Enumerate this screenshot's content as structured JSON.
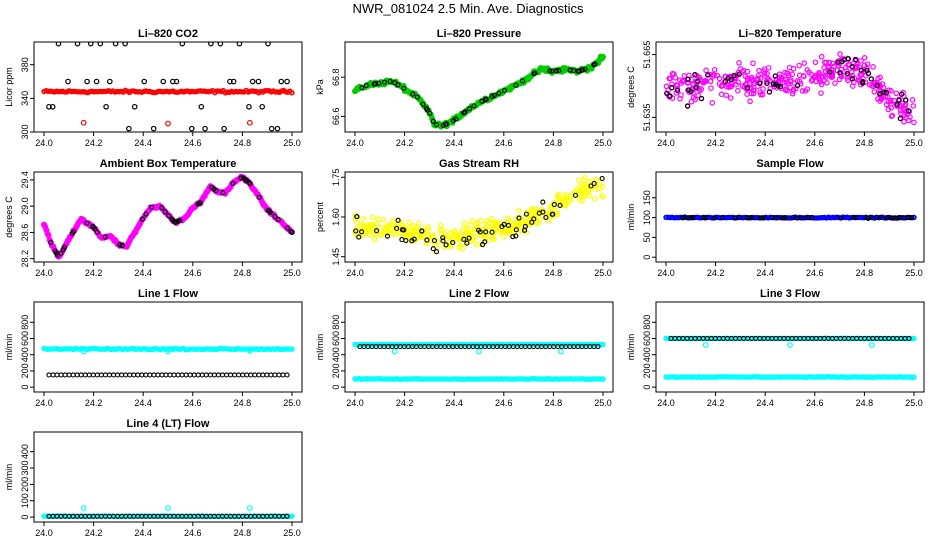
{
  "title": "NWR_081024  2.5 Min. Ave. Diagnostics",
  "chart_data": [
    {
      "type": "scatter",
      "title": "Li–820 CO2",
      "ylabel": "Licor ppm",
      "xlim": [
        24.0,
        25.0
      ],
      "ylim": [
        300,
        407
      ],
      "x_ticks": [
        "24.0",
        "24.2",
        "24.4",
        "24.6",
        "24.8",
        "25.0"
      ],
      "y_ticks": [
        {
          "v": 300,
          "t": "300"
        },
        {
          "v": 340,
          "t": "340"
        },
        {
          "v": 380,
          "t": "380"
        }
      ],
      "series": [
        {
          "color": "#ff0000",
          "style": "band",
          "x": [
            24.0,
            25.0
          ],
          "y": [
            348,
            348
          ],
          "noise": 1.5,
          "spikes": [
            [
              24.16,
              311
            ],
            [
              24.5,
              310
            ],
            [
              24.83,
              311
            ]
          ]
        },
        {
          "color": "#000000",
          "style": "scatter",
          "levels": [
            405,
            360,
            330,
            304
          ]
        }
      ]
    },
    {
      "type": "line",
      "title": "Li–820 Pressure",
      "ylabel": "kPa",
      "xlim": [
        24.0,
        25.0
      ],
      "ylim": [
        66.52,
        66.98
      ],
      "x_ticks": [
        "24.0",
        "24.2",
        "24.4",
        "24.6",
        "24.8",
        "25.0"
      ],
      "y_ticks": [
        {
          "v": 66.6,
          "t": "66.6"
        },
        {
          "v": 66.8,
          "t": "66.8"
        }
      ],
      "series": [
        {
          "color": "#00cc00",
          "style": "thick",
          "x": [
            24.0,
            24.05,
            24.1,
            24.15,
            24.2,
            24.25,
            24.3,
            24.32,
            24.35,
            24.4,
            24.45,
            24.5,
            24.55,
            24.6,
            24.65,
            24.7,
            24.75,
            24.8,
            24.85,
            24.9,
            24.95,
            25.0
          ],
          "y": [
            66.73,
            66.76,
            66.77,
            66.78,
            66.74,
            66.7,
            66.62,
            66.56,
            66.55,
            66.58,
            66.63,
            66.67,
            66.7,
            66.73,
            66.76,
            66.8,
            66.84,
            66.83,
            66.84,
            66.83,
            66.85,
            66.9
          ],
          "noise": 0.012
        },
        {
          "color": "#000000",
          "style": "overlay"
        }
      ]
    },
    {
      "type": "scatter",
      "title": "Li–820 Temperature",
      "ylabel": "degrees C",
      "xlim": [
        24.0,
        25.0
      ],
      "ylim": [
        51.628,
        51.671
      ],
      "x_ticks": [
        "24.0",
        "24.2",
        "24.4",
        "24.6",
        "24.8",
        "25.0"
      ],
      "y_ticks": [
        {
          "v": 51.635,
          "t": "51.635"
        },
        {
          "v": 51.665,
          "t": "51.665"
        }
      ],
      "series": [
        {
          "color": "#ff00ff",
          "style": "cloud",
          "x": [
            24.0,
            24.2,
            24.4,
            24.6,
            24.8,
            24.9,
            25.0
          ],
          "y": [
            51.648,
            51.652,
            51.652,
            51.655,
            51.657,
            51.642,
            51.638
          ],
          "noise": 0.008
        },
        {
          "color": "#000000",
          "style": "overlay"
        }
      ]
    },
    {
      "type": "line",
      "title": "Ambient Box Temperature",
      "ylabel": "degrees C",
      "xlim": [
        24.0,
        25.0
      ],
      "ylim": [
        28.15,
        29.52
      ],
      "x_ticks": [
        "24.0",
        "24.2",
        "24.4",
        "24.6",
        "24.8",
        "25.0"
      ],
      "y_ticks": [
        {
          "v": 28.2,
          "t": "28.2"
        },
        {
          "v": 28.6,
          "t": "28.6"
        },
        {
          "v": 29.0,
          "t": "29.0"
        },
        {
          "v": 29.4,
          "t": "29.4"
        }
      ],
      "series": [
        {
          "color": "#ff00ff",
          "style": "thick",
          "x": [
            24.0,
            24.03,
            24.06,
            24.1,
            24.15,
            24.2,
            24.23,
            24.27,
            24.3,
            24.33,
            24.37,
            24.4,
            24.43,
            24.47,
            24.5,
            24.53,
            24.57,
            24.6,
            24.63,
            24.67,
            24.7,
            24.73,
            24.77,
            24.8,
            24.83,
            24.87,
            24.9,
            24.95,
            25.0
          ],
          "y": [
            28.72,
            28.42,
            28.22,
            28.5,
            28.8,
            28.68,
            28.52,
            28.55,
            28.42,
            28.38,
            28.62,
            28.82,
            28.98,
            29.0,
            28.86,
            28.75,
            28.82,
            28.98,
            29.05,
            29.3,
            29.22,
            29.2,
            29.38,
            29.44,
            29.35,
            29.12,
            28.95,
            28.78,
            28.6
          ],
          "noise": 0.02
        },
        {
          "color": "#000000",
          "style": "overlay"
        }
      ]
    },
    {
      "type": "scatter",
      "title": "Gas Stream RH",
      "ylabel": "percent",
      "xlim": [
        24.0,
        25.0
      ],
      "ylim": [
        1.43,
        1.77
      ],
      "x_ticks": [
        "24.0",
        "24.2",
        "24.4",
        "24.6",
        "24.8",
        "25.0"
      ],
      "y_ticks": [
        {
          "v": 1.45,
          "t": "1.45"
        },
        {
          "v": 1.6,
          "t": "1.60"
        },
        {
          "v": 1.75,
          "t": "1.75"
        }
      ],
      "series": [
        {
          "color": "#ffff00",
          "style": "cloud",
          "x": [
            24.0,
            24.2,
            24.3,
            24.4,
            24.5,
            24.6,
            24.7,
            24.8,
            24.9,
            25.0
          ],
          "y": [
            1.56,
            1.55,
            1.52,
            1.52,
            1.54,
            1.56,
            1.59,
            1.63,
            1.7,
            1.72
          ],
          "noise": 0.045
        },
        {
          "color": "#000000",
          "style": "overlay"
        }
      ]
    },
    {
      "type": "scatter",
      "title": "Sample Flow",
      "ylabel": "ml/min",
      "xlim": [
        24.0,
        25.0
      ],
      "ylim": [
        -12,
        215
      ],
      "x_ticks": [
        "24.0",
        "24.2",
        "24.4",
        "24.6",
        "24.8",
        "25.0"
      ],
      "y_ticks": [
        {
          "v": 0,
          "t": "0"
        },
        {
          "v": 50,
          "t": "50"
        },
        {
          "v": 100,
          "t": "100"
        },
        {
          "v": 150,
          "t": "150"
        }
      ],
      "series": [
        {
          "color": "#0000ff",
          "style": "band",
          "x": [
            24.0,
            25.0
          ],
          "y": [
            100,
            100
          ],
          "noise": 1.5,
          "spikes": []
        },
        {
          "color": "#000000",
          "style": "overlay"
        }
      ]
    },
    {
      "type": "scatter",
      "title": "Line 1 Flow",
      "ylabel": "ml/min",
      "xlim": [
        24.0,
        25.0
      ],
      "ylim": [
        -60,
        1050
      ],
      "x_ticks": [
        "24.0",
        "24.2",
        "24.4",
        "24.6",
        "24.8",
        "25.0"
      ],
      "y_ticks": [
        {
          "v": 0,
          "t": "0"
        },
        {
          "v": 200,
          "t": "200"
        },
        {
          "v": 400,
          "t": "400"
        },
        {
          "v": 600,
          "t": "600"
        },
        {
          "v": 800,
          "t": "800"
        }
      ],
      "series": [
        {
          "color": "#00ffff",
          "style": "band",
          "x": [
            24.0,
            25.0
          ],
          "y": [
            470,
            470
          ],
          "noise": 9,
          "spikes": [
            [
              24.16,
              440
            ],
            [
              24.5,
              440
            ],
            [
              24.83,
              445
            ]
          ]
        },
        {
          "color": "#000000",
          "style": "row",
          "y": 150
        }
      ]
    },
    {
      "type": "scatter",
      "title": "Line 2 Flow",
      "ylabel": "ml/min",
      "xlim": [
        24.0,
        25.0
      ],
      "ylim": [
        -60,
        1050
      ],
      "x_ticks": [
        "24.0",
        "24.2",
        "24.4",
        "24.6",
        "24.8",
        "25.0"
      ],
      "y_ticks": [
        {
          "v": 0,
          "t": "0"
        },
        {
          "v": 200,
          "t": "200"
        },
        {
          "v": 400,
          "t": "400"
        },
        {
          "v": 600,
          "t": "600"
        },
        {
          "v": 800,
          "t": "800"
        }
      ],
      "series": [
        {
          "color": "#00ffff",
          "style": "band",
          "x": [
            24.0,
            25.0
          ],
          "y": [
            100,
            100
          ],
          "noise": 5,
          "spikes": []
        },
        {
          "color": "#00ffff",
          "style": "band",
          "x": [
            24.0,
            25.0
          ],
          "y": [
            525,
            525
          ],
          "noise": 3,
          "spikes": [
            [
              24.16,
              440
            ],
            [
              24.5,
              440
            ],
            [
              24.83,
              440
            ]
          ]
        },
        {
          "color": "#000000",
          "style": "row",
          "y": 500
        }
      ]
    },
    {
      "type": "scatter",
      "title": "Line 3 Flow",
      "ylabel": "ml/min",
      "xlim": [
        24.0,
        25.0
      ],
      "ylim": [
        -60,
        1050
      ],
      "x_ticks": [
        "24.0",
        "24.2",
        "24.4",
        "24.6",
        "24.8",
        "25.0"
      ],
      "y_ticks": [
        {
          "v": 0,
          "t": "0"
        },
        {
          "v": 200,
          "t": "200"
        },
        {
          "v": 400,
          "t": "400"
        },
        {
          "v": 600,
          "t": "600"
        },
        {
          "v": 800,
          "t": "800"
        }
      ],
      "series": [
        {
          "color": "#00ffff",
          "style": "band",
          "x": [
            24.0,
            25.0
          ],
          "y": [
            125,
            125
          ],
          "noise": 5,
          "spikes": []
        },
        {
          "color": "#00ffff",
          "style": "band",
          "x": [
            24.0,
            25.0
          ],
          "y": [
            600,
            600
          ],
          "noise": 3,
          "spikes": [
            [
              24.16,
              520
            ],
            [
              24.5,
              520
            ],
            [
              24.83,
              520
            ]
          ]
        },
        {
          "color": "#000000",
          "style": "row",
          "y": 600
        }
      ]
    },
    {
      "type": "scatter",
      "title": "Line 4 (LT) Flow",
      "ylabel": "ml/min",
      "xlim": [
        24.0,
        25.0
      ],
      "ylim": [
        -30,
        520
      ],
      "x_ticks": [
        "24.0",
        "24.2",
        "24.4",
        "24.6",
        "24.8",
        "25.0"
      ],
      "y_ticks": [
        {
          "v": 0,
          "t": "0"
        },
        {
          "v": 100,
          "t": "100"
        },
        {
          "v": 200,
          "t": "200"
        },
        {
          "v": 300,
          "t": "300"
        },
        {
          "v": 400,
          "t": "400"
        }
      ],
      "series": [
        {
          "color": "#00ffff",
          "style": "band",
          "x": [
            24.0,
            25.0
          ],
          "y": [
            5,
            5
          ],
          "noise": 2,
          "spikes": [
            [
              24.16,
              55
            ],
            [
              24.5,
              55
            ],
            [
              24.83,
              55
            ]
          ]
        },
        {
          "color": "#000000",
          "style": "row",
          "y": 5
        }
      ]
    }
  ]
}
